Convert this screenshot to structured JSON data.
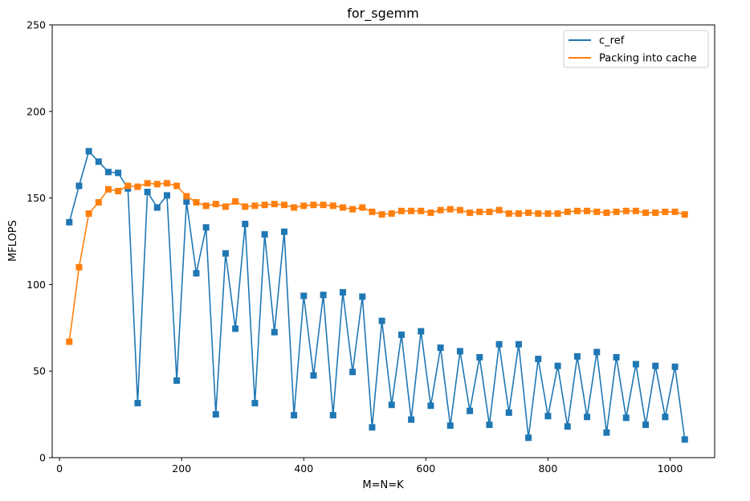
{
  "chart_data": {
    "type": "line",
    "title": "for_sgemm",
    "xlabel": "M=N=K",
    "ylabel": "MFLOPS",
    "xlim": [
      -12,
      1073
    ],
    "ylim": [
      0,
      250
    ],
    "xticks": [
      0,
      200,
      400,
      600,
      800,
      1000
    ],
    "yticks": [
      0,
      50,
      100,
      150,
      200,
      250
    ],
    "grid": false,
    "legend_position": "top-right",
    "marker": "square",
    "series": [
      {
        "name": "c_ref",
        "color": "#1f77b4",
        "x": [
          16,
          32,
          48,
          64,
          80,
          96,
          112,
          128,
          144,
          160,
          176,
          192,
          208,
          224,
          240,
          256,
          272,
          288,
          304,
          320,
          336,
          352,
          368,
          384,
          400,
          416,
          432,
          448,
          464,
          480,
          496,
          512,
          528,
          544,
          560,
          576,
          592,
          608,
          624,
          640,
          656,
          672,
          688,
          704,
          720,
          736,
          752,
          768,
          784,
          800,
          816,
          832,
          848,
          864,
          880,
          896,
          912,
          928,
          944,
          960,
          976,
          992,
          1008,
          1024
        ],
        "values": [
          136,
          157,
          177,
          171,
          165,
          164.5,
          155.5,
          31.5,
          153.5,
          144.5,
          151.5,
          44.5,
          148,
          106.5,
          133,
          25,
          118,
          74.5,
          135,
          31.5,
          129,
          72.5,
          130.5,
          24.5,
          93.5,
          47.5,
          94,
          24.5,
          95.5,
          49.5,
          93,
          17.5,
          79,
          30.5,
          71,
          22,
          73,
          30,
          63.5,
          18.5,
          61.5,
          27,
          58,
          19,
          65.5,
          26,
          65.5,
          11.5,
          57,
          24,
          53,
          18,
          58.5,
          23.5,
          61,
          14.5,
          58,
          23,
          54,
          19,
          53,
          23.5,
          52.5,
          10.5
        ]
      },
      {
        "name": "Packing into cache",
        "color": "#ff7f0e",
        "x": [
          16,
          32,
          48,
          64,
          80,
          96,
          112,
          128,
          144,
          160,
          176,
          192,
          208,
          224,
          240,
          256,
          272,
          288,
          304,
          320,
          336,
          352,
          368,
          384,
          400,
          416,
          432,
          448,
          464,
          480,
          496,
          512,
          528,
          544,
          560,
          576,
          592,
          608,
          624,
          640,
          656,
          672,
          688,
          704,
          720,
          736,
          752,
          768,
          784,
          800,
          816,
          832,
          848,
          864,
          880,
          896,
          912,
          928,
          944,
          960,
          976,
          992,
          1008,
          1024
        ],
        "values": [
          67,
          110,
          141,
          147.5,
          155,
          154,
          157,
          156.5,
          158.5,
          158,
          158.5,
          157,
          151,
          147.5,
          145.5,
          146.5,
          145,
          148,
          145,
          145.5,
          146,
          146.5,
          146,
          144.5,
          145.5,
          146,
          146,
          145.5,
          144.5,
          143.5,
          144.5,
          142,
          140.5,
          141,
          142.5,
          142.5,
          142.5,
          141.5,
          143,
          143.5,
          143,
          141.5,
          142,
          142,
          143,
          141,
          141,
          141.5,
          141,
          141,
          141,
          142,
          142.5,
          142.5,
          142,
          141.5,
          142,
          142.5,
          142.5,
          141.5,
          141.5,
          142,
          142,
          140.5
        ]
      }
    ]
  }
}
